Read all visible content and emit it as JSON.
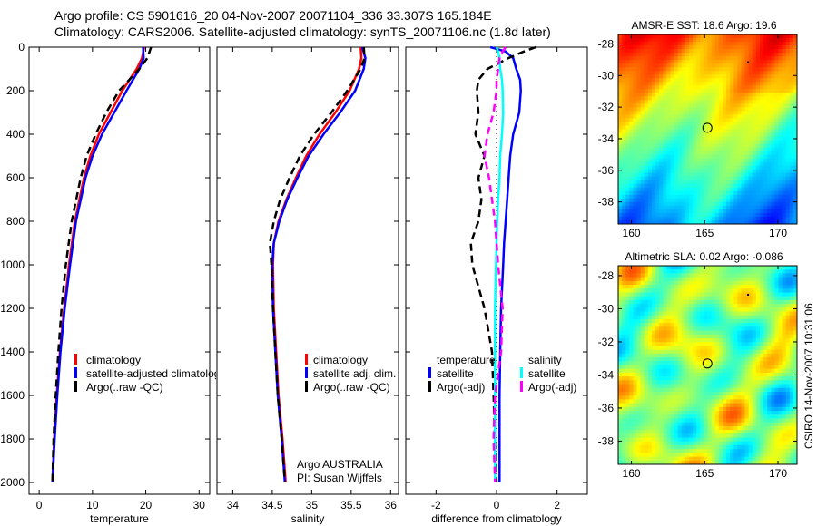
{
  "header": {
    "line1": "Argo profile: CS 5901616_20 04-Nov-2007 20071104_336 33.307S 165.184E",
    "line2": "Climatology: CARS2006. Satellite-adjusted climatology: synTS_20071106.nc (1.8d later)"
  },
  "credit": {
    "line1": "Argo AUSTRALIA",
    "line2": "PI: Susan Wijffels"
  },
  "stamp": "CSIRO 14-Nov-2007 10:31:06",
  "colors": {
    "climatology": "#ff0000",
    "satellite": "#0000ff",
    "argo": "#000000",
    "sal_satellite": "#00ffff",
    "sal_argo": "#ff00ff"
  },
  "chart_data": [
    {
      "type": "line",
      "id": "temperature",
      "xlabel": "temperature",
      "ylabel": "",
      "xlim": [
        -1.9,
        32
      ],
      "ylim": [
        0,
        2054
      ],
      "y_reversed": true,
      "xticks": [
        0,
        10,
        20,
        30
      ],
      "yticks": [
        0,
        200,
        400,
        600,
        800,
        1000,
        1200,
        1400,
        1600,
        1800,
        2000
      ],
      "depth": [
        0,
        50,
        100,
        200,
        300,
        400,
        500,
        600,
        800,
        1000,
        1200,
        1400,
        1600,
        1800,
        2000
      ],
      "legend": [
        "climatology",
        "satellite-adjusted climatology",
        "Argo(..raw -QC)"
      ],
      "series": [
        {
          "name": "climatology",
          "color": "#ff0000",
          "style": "solid",
          "values": [
            19.7,
            19.3,
            18.3,
            15.6,
            13.4,
            11.2,
            9.6,
            8.4,
            6.7,
            5.6,
            4.7,
            3.9,
            3.3,
            2.8,
            2.5
          ]
        },
        {
          "name": "satellite-adjusted climatology",
          "color": "#0000ff",
          "style": "solid",
          "values": [
            19.5,
            19.6,
            18.8,
            16.4,
            14.1,
            11.8,
            10.0,
            8.7,
            6.9,
            5.8,
            4.8,
            4.0,
            3.4,
            2.9,
            2.5
          ]
        },
        {
          "name": "Argo(..raw -QC)",
          "color": "#000000",
          "style": "dashed",
          "values": [
            21.0,
            20.3,
            18.8,
            15.0,
            12.6,
            10.6,
            8.9,
            7.8,
            6.1,
            5.0,
            4.2,
            3.6,
            3.1,
            2.7,
            2.5
          ]
        }
      ]
    },
    {
      "type": "line",
      "id": "salinity",
      "xlabel": "salinity",
      "xlim": [
        33.8,
        36.1
      ],
      "ylim": [
        0,
        2054
      ],
      "y_reversed": true,
      "xticks": [
        34,
        34.5,
        35,
        35.5,
        36
      ],
      "depth": [
        0,
        50,
        100,
        200,
        300,
        400,
        500,
        600,
        700,
        800,
        900,
        1000,
        1200,
        1400,
        1600,
        1800,
        2000
      ],
      "legend": [
        "climatology",
        "satellite adj. clim.",
        "Argo(..raw -QC)"
      ],
      "series": [
        {
          "name": "climatology",
          "color": "#ff0000",
          "style": "solid",
          "values": [
            35.62,
            35.63,
            35.6,
            35.48,
            35.3,
            35.1,
            34.93,
            34.8,
            34.68,
            34.58,
            34.52,
            34.51,
            34.52,
            34.55,
            34.58,
            34.63,
            34.67
          ]
        },
        {
          "name": "satellite adj. clim.",
          "color": "#0000ff",
          "style": "solid",
          "values": [
            35.64,
            35.68,
            35.66,
            35.55,
            35.36,
            35.15,
            34.96,
            34.82,
            34.69,
            34.59,
            34.52,
            34.5,
            34.51,
            34.54,
            34.57,
            34.62,
            34.66
          ]
        },
        {
          "name": "Argo(..raw -QC)",
          "color": "#000000",
          "style": "dashed",
          "values": [
            35.66,
            35.67,
            35.62,
            35.45,
            35.25,
            35.03,
            34.85,
            34.72,
            34.6,
            34.52,
            34.47,
            34.49,
            34.51,
            34.54,
            34.57,
            34.62,
            34.66
          ]
        }
      ]
    },
    {
      "type": "line",
      "id": "difference",
      "xlabel": "difference from climatology",
      "xlim": [
        -3,
        3
      ],
      "ylim": [
        0,
        2054
      ],
      "y_reversed": true,
      "xticks": [
        -2,
        0,
        2
      ],
      "depth": [
        0,
        20,
        50,
        100,
        150,
        200,
        300,
        400,
        500,
        600,
        700,
        800,
        900,
        1000,
        1200,
        1400,
        1600,
        1800,
        2000
      ],
      "legend": {
        "temperature_title": "temperature",
        "temperature": [
          "satellite",
          "Argo(-adj)"
        ],
        "salinity_title": "salinity",
        "salinity": [
          "satellite",
          "Argo(-adj)"
        ]
      },
      "series": [
        {
          "name": "temperature satellite",
          "color": "#0000ff",
          "style": "solid",
          "values": [
            -0.2,
            0.3,
            0.55,
            0.65,
            0.78,
            0.8,
            0.75,
            0.55,
            0.45,
            0.4,
            0.35,
            0.3,
            0.25,
            0.22,
            0.15,
            0.12,
            0.1,
            0.1,
            0.1
          ]
        },
        {
          "name": "temperature Argo(-adj)",
          "color": "#000000",
          "style": "dashed",
          "values": [
            1.3,
            0.9,
            0.4,
            -0.3,
            -0.6,
            -0.65,
            -0.6,
            -0.7,
            -0.4,
            -0.6,
            -0.5,
            -0.6,
            -0.85,
            -0.8,
            -0.4,
            -0.15,
            -0.1,
            -0.05,
            0
          ]
        },
        {
          "name": "salinity satellite",
          "color": "#00ffff",
          "style": "solid",
          "values": [
            0.0,
            0.05,
            0.1,
            0.12,
            0.18,
            0.2,
            0.22,
            0.18,
            0.12,
            0.1,
            0.05,
            0.02,
            0.0,
            -0.02,
            -0.05,
            -0.05,
            -0.05,
            -0.05,
            -0.05
          ]
        },
        {
          "name": "salinity Argo(-adj)",
          "color": "#ff00ff",
          "style": "dashed",
          "values": [
            0.3,
            0.2,
            0.1,
            0.05,
            0.0,
            0.0,
            -0.1,
            -0.3,
            -0.4,
            -0.25,
            -0.15,
            -0.05,
            0.0,
            0.05,
            0.2,
            0.15,
            -0.05,
            -0.1,
            -0.05
          ]
        }
      ]
    },
    {
      "type": "heatmap",
      "id": "sst-map",
      "title": "AMSR-E SST: 18.6 Argo: 19.6",
      "xlim": [
        159.1,
        171.3
      ],
      "ylim": [
        -39.4,
        -27.4
      ],
      "xticks": [
        160,
        165,
        170
      ],
      "yticks": [
        -28,
        -30,
        -32,
        -34,
        -36,
        -38
      ],
      "marker": {
        "lon": 165.184,
        "lat": -33.307
      }
    },
    {
      "type": "heatmap",
      "id": "sla-map",
      "title": "Altimetric SLA: 0.02 Argo: -0.086",
      "xlim": [
        159.1,
        171.3
      ],
      "ylim": [
        -39.4,
        -27.4
      ],
      "xticks": [
        160,
        165,
        170
      ],
      "yticks": [
        -28,
        -30,
        -32,
        -34,
        -36,
        -38
      ],
      "marker": {
        "lon": 165.184,
        "lat": -33.307
      }
    }
  ]
}
